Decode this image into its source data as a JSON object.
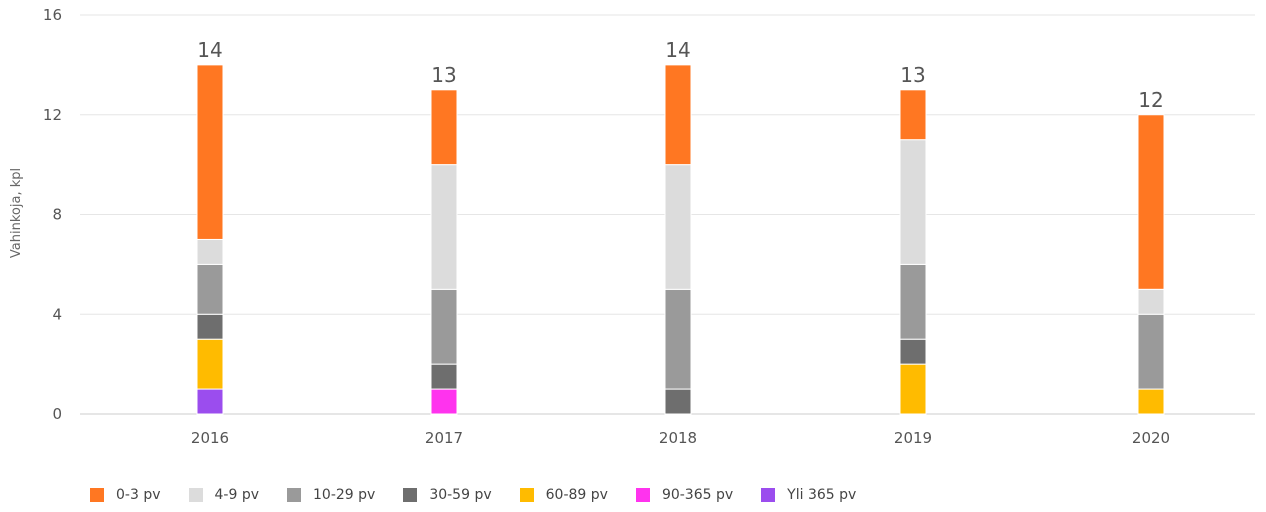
{
  "chart_data": {
    "type": "bar",
    "stacked": true,
    "title": "",
    "xlabel": "",
    "ylabel": "Vahinkoja, kpl",
    "ylim": [
      0,
      16
    ],
    "yticks": [
      "0",
      "4",
      "8",
      "12",
      "16"
    ],
    "grid": true,
    "legend_position": "bottom-left",
    "categories": [
      "2016",
      "2017",
      "2018",
      "2019",
      "2020"
    ],
    "totals": [
      "14",
      "13",
      "14",
      "13",
      "12"
    ],
    "series": [
      {
        "name": "Yli 365 pv",
        "color": "#9b4dee",
        "values": [
          1,
          0,
          0,
          0,
          0
        ]
      },
      {
        "name": "90-365 pv",
        "color": "#ff33ee",
        "values": [
          0,
          1,
          0,
          0,
          0
        ]
      },
      {
        "name": "60-89 pv",
        "color": "#ffbb00",
        "values": [
          2,
          0,
          0,
          2,
          1
        ]
      },
      {
        "name": "30-59 pv",
        "color": "#6e6e6e",
        "values": [
          1,
          1,
          1,
          1,
          0
        ]
      },
      {
        "name": "10-29 pv",
        "color": "#9a9a9a",
        "values": [
          2,
          3,
          4,
          3,
          3
        ]
      },
      {
        "name": "4-9 pv",
        "color": "#dcdcdc",
        "values": [
          1,
          5,
          5,
          5,
          1
        ]
      },
      {
        "name": "0-3 pv",
        "color": "#ff7722",
        "values": [
          7,
          3,
          4,
          2,
          7
        ]
      }
    ],
    "legend_order": [
      "0-3 pv",
      "4-9 pv",
      "10-29 pv",
      "30-59 pv",
      "60-89 pv",
      "90-365 pv",
      "Yli 365 pv"
    ]
  }
}
